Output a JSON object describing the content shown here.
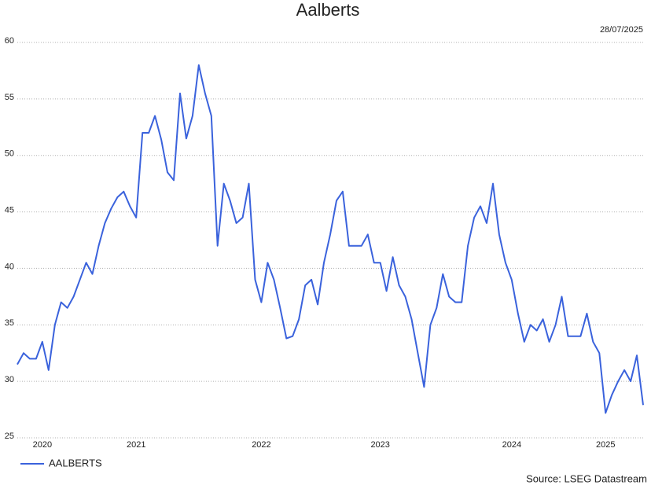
{
  "chart_data": {
    "type": "line",
    "title": "Aalberts",
    "date": "28/07/2025",
    "source": "Source: LSEG Datastream",
    "categories": [
      null,
      null,
      null,
      null,
      "2020",
      null,
      null,
      null,
      null,
      null,
      null,
      null,
      null,
      null,
      null,
      null,
      null,
      null,
      null,
      "2021",
      null,
      null,
      null,
      null,
      null,
      null,
      null,
      null,
      null,
      null,
      null,
      null,
      null,
      null,
      null,
      null,
      null,
      null,
      null,
      "2022",
      null,
      null,
      null,
      null,
      null,
      null,
      null,
      null,
      null,
      null,
      null,
      null,
      null,
      null,
      null,
      null,
      null,
      null,
      "2023",
      null,
      null,
      null,
      null,
      null,
      null,
      null,
      null,
      null,
      null,
      null,
      null,
      null,
      null,
      null,
      null,
      null,
      null,
      null,
      null,
      "2024",
      null,
      null,
      null,
      null,
      null,
      null,
      null,
      null,
      null,
      null,
      null,
      null,
      null,
      null,
      "2025",
      null,
      null,
      null,
      null,
      null,
      null
    ],
    "series": [
      {
        "name": "AALBERTS",
        "color": "#3a62dc",
        "values": [
          31.5,
          32.5,
          32,
          32,
          33.5,
          31,
          35,
          37,
          36.5,
          37.5,
          39,
          40.5,
          39.5,
          42,
          44,
          45.3,
          46.3,
          46.8,
          45.5,
          44.5,
          52,
          52,
          53.5,
          51.4,
          48.5,
          47.8,
          55.5,
          51.5,
          53.5,
          58,
          55.5,
          53.5,
          42,
          47.5,
          46,
          44,
          44.5,
          47.5,
          39,
          37,
          40.5,
          39,
          36.5,
          33.8,
          34,
          35.5,
          38.5,
          39,
          36.8,
          40.5,
          43,
          46,
          46.8,
          42,
          42,
          42,
          43,
          40.5,
          40.5,
          38,
          41,
          38.5,
          37.5,
          35.5,
          32.5,
          29.5,
          35,
          36.5,
          39.5,
          37.5,
          37,
          37,
          42,
          44.5,
          45.5,
          44,
          47.5,
          43,
          40.5,
          39,
          36,
          33.5,
          35,
          34.5,
          35.5,
          33.5,
          35,
          37.5,
          34,
          34,
          34,
          36,
          33.5,
          32.5,
          27.2,
          28.8,
          30,
          31,
          30,
          32.3,
          27.9
        ]
      }
    ],
    "ylim": [
      25,
      60
    ],
    "yticks": [
      25,
      30,
      35,
      40,
      45,
      50,
      55,
      60
    ],
    "grid": true,
    "legend": "bottom-left"
  }
}
